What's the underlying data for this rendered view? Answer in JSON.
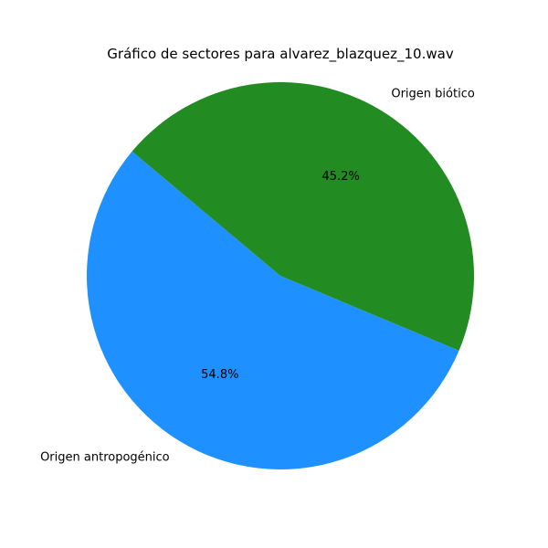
{
  "chart_data": {
    "type": "pie",
    "title": "Gráfico de sectores para alvarez_blazquez_10.wav",
    "slices": [
      {
        "label": "Origen antropogénico",
        "value": 54.8,
        "pct_label": "54.8%",
        "color": "#1e90ff"
      },
      {
        "label": "Origen biótico",
        "value": 45.2,
        "pct_label": "45.2%",
        "color": "#228b22"
      }
    ],
    "start_angle_deg": 140,
    "direction": "counterclockwise"
  }
}
